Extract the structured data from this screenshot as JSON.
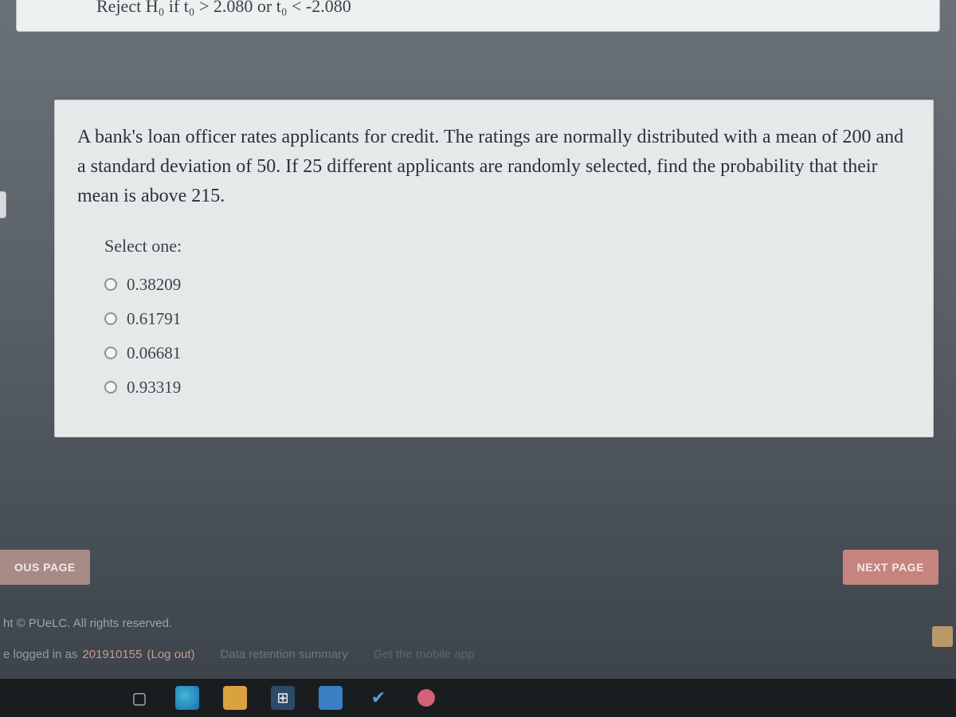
{
  "cropped_card": {
    "text_fragment": "Reject H₀ if t₀ > 2.080 or t₀ < -2.080"
  },
  "question": {
    "prompt": "A bank's loan officer rates applicants for credit. The ratings are normally distributed with a mean of 200 and a standard deviation of 50. If 25 different applicants are randomly selected, find the probability that their mean is above 215.",
    "select_label": "Select one:",
    "options": [
      {
        "label": "0.38209"
      },
      {
        "label": "0.61791"
      },
      {
        "label": "0.06681"
      },
      {
        "label": "0.93319"
      }
    ]
  },
  "nav": {
    "prev_label": "OUS PAGE",
    "next_label": "NEXT PAGE"
  },
  "footer": {
    "copyright": "ht © PUeLC. All rights reserved.",
    "login_prefix": "e logged in as ",
    "user": "201910155",
    "user_suffix": " (Log out)",
    "data_link": "Data retention summary",
    "mobile_link": "Get the mobile app"
  },
  "colors": {
    "card_bg": "#e6e9ea",
    "btn_prev": "#a88b87",
    "btn_next": "#c7847f",
    "page_bg_top": "#6a7278",
    "page_bg_bottom": "#3a4148"
  }
}
